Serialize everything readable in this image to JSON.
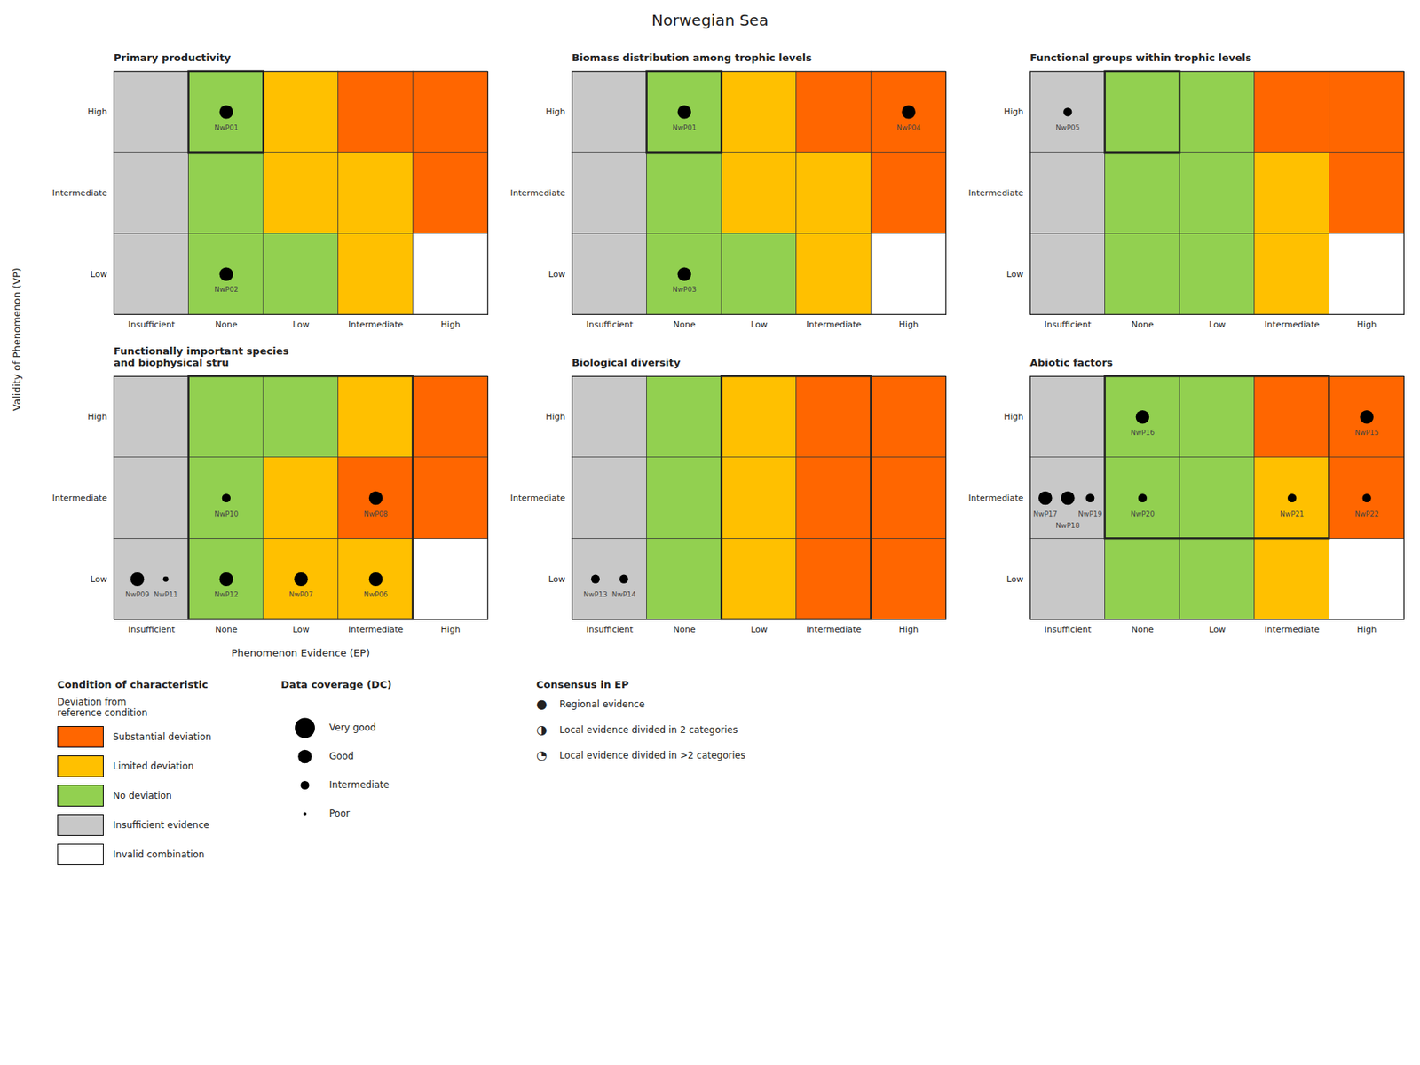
{
  "chart_data": {
    "type": "heatmap",
    "title": "Norwegian Sea",
    "xlabel": "Phenomenon Evidence (EP)",
    "ylabel": "Validity of Phenomenon (VP)",
    "x_categories": [
      "Insufficient",
      "None",
      "Low",
      "Intermediate",
      "High"
    ],
    "y_categories": [
      "Low",
      "Intermediate",
      "High"
    ],
    "color": "black",
    "panels": [
      {
        "title": "Primary productivity",
        "cell_colors": [
          [
            "#c8c8c8",
            "#92d050",
            "#92d050",
            "#ffc000",
            "#ffffff"
          ],
          [
            "#c8c8c8",
            "#92d050",
            "#ffc000",
            "#ffc000",
            "#ff6600"
          ],
          [
            "#c8c8c8",
            "#92d050",
            "#ffc000",
            "#ff6600",
            "#ff6600"
          ]
        ],
        "bold_boxes": [
          {
            "ep_from": "None",
            "ep_to": "None",
            "vp_from": "High",
            "vp_to": "High"
          }
        ],
        "dots": [
          {
            "id": "NwP01",
            "ep": "None",
            "vp": "High",
            "size": 160
          },
          {
            "id": "NwP02",
            "ep": "None",
            "vp": "Low",
            "size": 160
          }
        ]
      },
      {
        "title": "Biomass distribution among trophic levels",
        "cell_colors": [
          [
            "#c8c8c8",
            "#92d050",
            "#92d050",
            "#ffc000",
            "#ffffff"
          ],
          [
            "#c8c8c8",
            "#92d050",
            "#ffc000",
            "#ffc000",
            "#ff6600"
          ],
          [
            "#c8c8c8",
            "#92d050",
            "#ffc000",
            "#ff6600",
            "#ff6600"
          ]
        ],
        "bold_boxes": [
          {
            "ep_from": "None",
            "ep_to": "None",
            "vp_from": "High",
            "vp_to": "High"
          }
        ],
        "dots": [
          {
            "id": "NwP01",
            "ep": "None",
            "vp": "High",
            "size": 160
          },
          {
            "id": "NwP03",
            "ep": "None",
            "vp": "Low",
            "size": 160
          },
          {
            "id": "NwP04",
            "ep": "High",
            "vp": "High",
            "size": 160
          }
        ]
      },
      {
        "title": "Functional groups within trophic levels",
        "cell_colors": [
          [
            "#c8c8c8",
            "#92d050",
            "#92d050",
            "#ffc000",
            "#ffffff"
          ],
          [
            "#c8c8c8",
            "#92d050",
            "#92d050",
            "#ffc000",
            "#ff6600"
          ],
          [
            "#c8c8c8",
            "#92d050",
            "#92d050",
            "#ff6600",
            "#ff6600"
          ]
        ],
        "bold_boxes": [
          {
            "ep_from": "None",
            "ep_to": "None",
            "vp_from": "High",
            "vp_to": "High"
          }
        ],
        "dots": [
          {
            "id": "NwP05",
            "ep": "Insufficient",
            "vp": "High",
            "size": 65
          }
        ]
      },
      {
        "title": "Functionally important species\nand biophysical stru",
        "cell_colors": [
          [
            "#c8c8c8",
            "#92d050",
            "#ffc000",
            "#ffc000",
            "#ffffff"
          ],
          [
            "#c8c8c8",
            "#92d050",
            "#ffc000",
            "#ff6600",
            "#ff6600"
          ],
          [
            "#c8c8c8",
            "#92d050",
            "#92d050",
            "#ffc000",
            "#ff6600"
          ]
        ],
        "bold_boxes": [
          {
            "ep_from": "None",
            "ep_to": "Intermediate",
            "vp_from": "Low",
            "vp_to": "High"
          }
        ],
        "dots": [
          {
            "id": "NwP09",
            "ep": "Insufficient",
            "vp": "Low",
            "size": 160
          },
          {
            "id": "NwP11",
            "ep": "Insufficient",
            "vp": "Low",
            "size": 25
          },
          {
            "id": "NwP12",
            "ep": "None",
            "vp": "Low",
            "size": 160
          },
          {
            "id": "NwP10",
            "ep": "None",
            "vp": "Intermediate",
            "size": 65
          },
          {
            "id": "NwP07",
            "ep": "Low",
            "vp": "Low",
            "size": 160
          },
          {
            "id": "NwP08",
            "ep": "Intermediate",
            "vp": "Intermediate",
            "size": 160
          },
          {
            "id": "NwP06",
            "ep": "Intermediate",
            "vp": "Low",
            "size": 160
          }
        ]
      },
      {
        "title": "Biological diversity",
        "cell_colors": [
          [
            "#c8c8c8",
            "#92d050",
            "#ffc000",
            "#ff6600",
            "#ff6600"
          ],
          [
            "#c8c8c8",
            "#92d050",
            "#ffc000",
            "#ff6600",
            "#ff6600"
          ],
          [
            "#c8c8c8",
            "#92d050",
            "#ffc000",
            "#ff6600",
            "#ff6600"
          ]
        ],
        "bold_boxes": [
          {
            "ep_from": "Low",
            "ep_to": "Intermediate",
            "vp_from": "Low",
            "vp_to": "High"
          }
        ],
        "dots": [
          {
            "id": "NwP13",
            "ep": "Insufficient",
            "vp": "Low",
            "size": 65
          },
          {
            "id": "NwP14",
            "ep": "Insufficient",
            "vp": "Low",
            "size": 65
          }
        ]
      },
      {
        "title": "Abiotic factors",
        "cell_colors": [
          [
            "#c8c8c8",
            "#92d050",
            "#92d050",
            "#ffc000",
            "#ffffff"
          ],
          [
            "#c8c8c8",
            "#92d050",
            "#92d050",
            "#ffc000",
            "#ff6600"
          ],
          [
            "#c8c8c8",
            "#92d050",
            "#92d050",
            "#ff6600",
            "#ff6600"
          ]
        ],
        "bold_boxes": [
          {
            "ep_from": "None",
            "ep_to": "Intermediate",
            "vp_from": "Intermediate",
            "vp_to": "High"
          }
        ],
        "dots": [
          {
            "id": "NwP16",
            "ep": "None",
            "vp": "High",
            "size": 160
          },
          {
            "id": "NwP15",
            "ep": "High",
            "vp": "High",
            "size": 160
          },
          {
            "id": "NwP17",
            "ep": "Insufficient",
            "vp": "Intermediate",
            "size": 160
          },
          {
            "id": "NwP18",
            "ep": "Insufficient",
            "vp": "Intermediate",
            "size": 160
          },
          {
            "id": "NwP19",
            "ep": "Insufficient",
            "vp": "Intermediate",
            "size": 65
          },
          {
            "id": "NwP20",
            "ep": "None",
            "vp": "Intermediate",
            "size": 65
          },
          {
            "id": "NwP21",
            "ep": "Intermediate",
            "vp": "Intermediate",
            "size": 65
          },
          {
            "id": "NwP22",
            "ep": "High",
            "vp": "Intermediate",
            "size": 65
          }
        ]
      }
    ],
    "legend_condition": {
      "title": "Condition of characteristic",
      "subtitle": "Deviation from\nreference condition",
      "colors": [
        "#ff6600",
        "#ffc000",
        "#92d050",
        "#c8c8c8",
        "#ffffff"
      ],
      "labels": [
        "Substantial deviation",
        "Limited deviation",
        "No deviation",
        "Insufficient evidence",
        "Invalid combination"
      ]
    },
    "legend_coverage": {
      "title": "Data coverage (DC)",
      "sizes": [
        350,
        160,
        65,
        8
      ],
      "labels": [
        "Very good",
        "Good",
        "Intermediate",
        "Poor"
      ]
    },
    "legend_consensus": {
      "title": "Consensus in EP",
      "symbols": [
        "●",
        "◑",
        "◔"
      ],
      "labels": [
        "Regional evidence",
        "Local evidence divided in 2 categories",
        "Local evidence divided in >2 categories"
      ]
    }
  }
}
